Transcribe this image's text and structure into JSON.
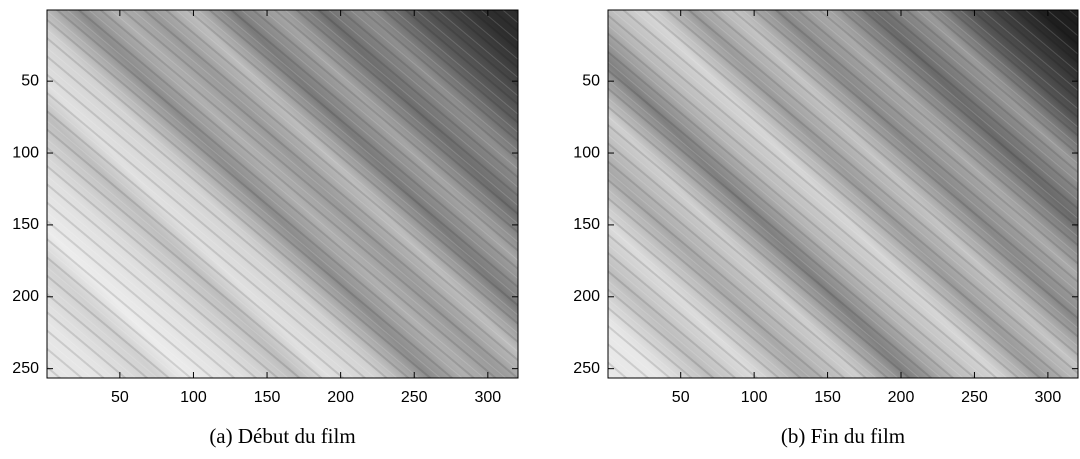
{
  "chart_data": [
    {
      "type": "image",
      "caption": "(a) Début du film",
      "xlim": [
        0.5,
        320.5
      ],
      "ylim": [
        256.5,
        0.5
      ],
      "xticks": [
        50,
        100,
        150,
        200,
        250,
        300
      ],
      "yticks": [
        50,
        100,
        150,
        200,
        250
      ]
    },
    {
      "type": "image",
      "caption": "(b) Fin du film",
      "xlim": [
        0.5,
        320.5
      ],
      "ylim": [
        256.5,
        0.5
      ],
      "xticks": [
        50,
        100,
        150,
        200,
        250,
        300
      ],
      "yticks": [
        50,
        100,
        150,
        200,
        250
      ]
    }
  ]
}
